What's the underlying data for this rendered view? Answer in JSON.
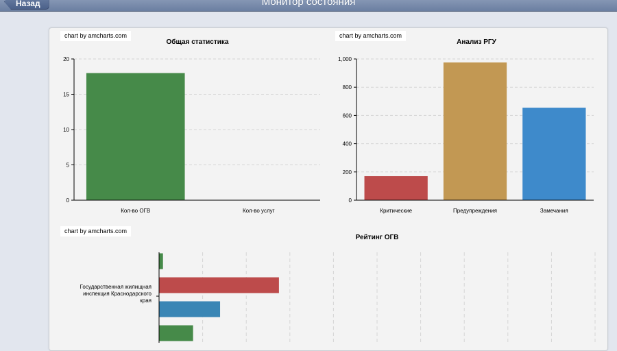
{
  "header": {
    "back_label": "Назад",
    "title": "Монитор состояния"
  },
  "credits": {
    "c1": "chart by amcharts.com",
    "c2": "chart by amcharts.com",
    "c3": "chart by amcharts.com"
  },
  "chart_data": [
    {
      "type": "bar",
      "title": "Общая статистика",
      "categories": [
        "Кол-во ОГВ",
        "Кол-во услуг"
      ],
      "values": [
        18,
        0
      ],
      "ylim": [
        0,
        20
      ],
      "yticks": [
        0,
        5,
        10,
        15,
        20
      ],
      "ytick_labels": [
        "0",
        "5",
        "10",
        "15",
        "20"
      ],
      "colors": [
        "#468a49"
      ],
      "grid": true
    },
    {
      "type": "bar",
      "title": "Анализ РГУ",
      "categories": [
        "Критические",
        "Предупреждения",
        "Замечания"
      ],
      "values": [
        170,
        975,
        655
      ],
      "ylim": [
        0,
        1000
      ],
      "yticks": [
        0,
        200,
        400,
        600,
        800,
        1000
      ],
      "ytick_labels": [
        "0",
        "200",
        "400",
        "600",
        "800",
        "1,000"
      ],
      "colors": [
        "#bd4b4b",
        "#c29853",
        "#3e8acb"
      ],
      "grid": true
    },
    {
      "type": "bar",
      "orientation": "horizontal",
      "title": "Рейтинг ОГВ",
      "categories": [
        "Государственная жилищная инспекция Краснодарского края"
      ],
      "category_lines": [
        "Государственная жилищная",
        "инспекция Краснодарского",
        "края"
      ],
      "series": [
        {
          "color": "#468a49",
          "values": [
            0.9
          ]
        },
        {
          "color": "#bd4b4b",
          "values": [
            27.5
          ]
        },
        {
          "color": "#3a86b5",
          "values": [
            14
          ]
        },
        {
          "color": "#468a49",
          "values": [
            7.8
          ]
        }
      ],
      "xlim": [
        0,
        100
      ],
      "grid": true
    }
  ]
}
